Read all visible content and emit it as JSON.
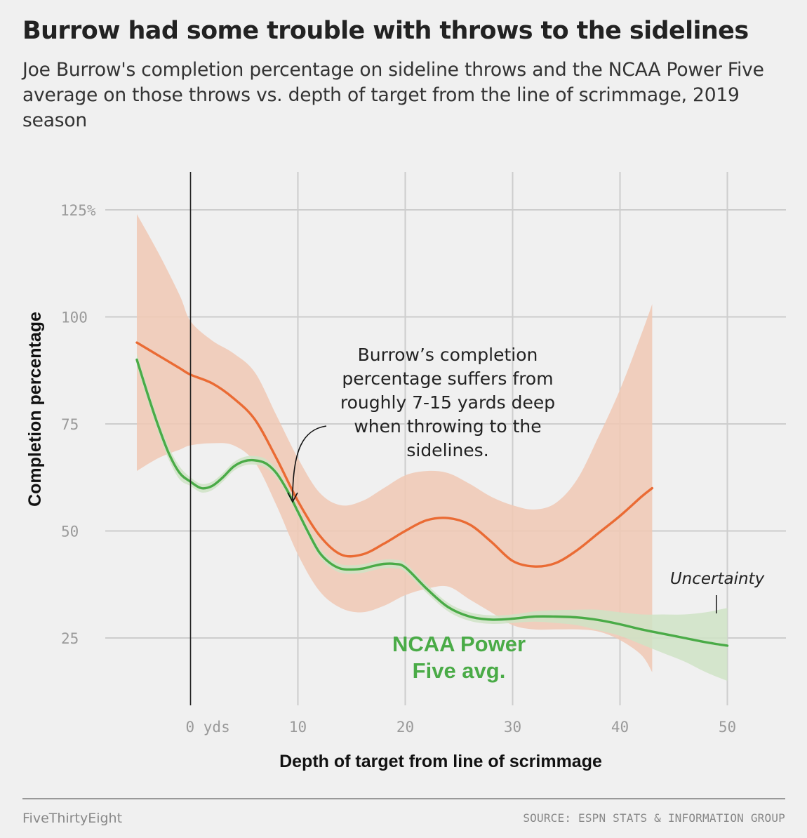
{
  "header": {
    "title": "Burrow had some trouble with throws to the sidelines",
    "subtitle": "Joe Burrow's completion percentage on sideline throws and the NCAA Power Five average on those throws vs. depth of target from the line of scrimmage, 2019 season"
  },
  "chart_data": {
    "type": "line",
    "xlabel": "Depth of target from line of scrimmage",
    "ylabel": "Completion percentage",
    "xlim": [
      -7,
      55
    ],
    "ylim": [
      10,
      130
    ],
    "x_ticks": [
      {
        "value": 0,
        "label": "0 yds"
      },
      {
        "value": 10,
        "label": "10"
      },
      {
        "value": 20,
        "label": "20"
      },
      {
        "value": 30,
        "label": "30"
      },
      {
        "value": 40,
        "label": "40"
      },
      {
        "value": 50,
        "label": "50"
      }
    ],
    "y_ticks": [
      {
        "value": 25,
        "label": "25"
      },
      {
        "value": 50,
        "label": "50"
      },
      {
        "value": 75,
        "label": "75"
      },
      {
        "value": 100,
        "label": "100"
      },
      {
        "value": 125,
        "label": "125%"
      }
    ],
    "grid": true,
    "zero_line_x": 0,
    "series": [
      {
        "key": "burrow",
        "color": "#ea6b34",
        "band_color": "#f0c8b4",
        "x": [
          -5,
          -3,
          -1,
          0,
          2,
          4,
          6,
          8,
          10,
          12,
          14,
          16,
          18,
          20,
          22,
          24,
          26,
          28,
          30,
          32,
          34,
          36,
          38,
          40,
          42,
          43
        ],
        "y": [
          94,
          91,
          88,
          86.5,
          84.5,
          81,
          76,
          67,
          57,
          49,
          44.5,
          44.5,
          47,
          50,
          52.5,
          53,
          51.5,
          47.5,
          43,
          41.7,
          42.5,
          45.5,
          49.5,
          53.5,
          58,
          60
        ],
        "lower": [
          64,
          67,
          69,
          70,
          70.5,
          70,
          66,
          56,
          44.5,
          36,
          32,
          31,
          32.5,
          35,
          36.5,
          37,
          34,
          31,
          28,
          27,
          27,
          27,
          26.5,
          24.5,
          21,
          17
        ],
        "upper": [
          124,
          115,
          105,
          99,
          94.5,
          91.5,
          87,
          77,
          67,
          59,
          56,
          57,
          60,
          63,
          64,
          63.5,
          61,
          58,
          56,
          55,
          56.5,
          62,
          72,
          83,
          96,
          103
        ]
      },
      {
        "key": "power_five",
        "color": "#4aab47",
        "band_color": "#cfe3c6",
        "x": [
          -5,
          -4,
          -3,
          -2,
          -1,
          0,
          1,
          2,
          3,
          4,
          5,
          6,
          7,
          8,
          9,
          10,
          11,
          12,
          13,
          14,
          15,
          16,
          17,
          18,
          19,
          20,
          22,
          24,
          26,
          28,
          30,
          32,
          34,
          36,
          38,
          40,
          42,
          44,
          46,
          48,
          50
        ],
        "y": [
          90,
          82,
          74.5,
          68,
          63.5,
          61.5,
          60,
          60.5,
          62.5,
          65,
          66.3,
          66.5,
          65.8,
          63.5,
          59.5,
          54.5,
          49.5,
          45,
          42.5,
          41.2,
          41,
          41.2,
          41.8,
          42.3,
          42.3,
          41.5,
          36.5,
          32.2,
          30,
          29.3,
          29.5,
          30,
          30,
          29.8,
          29.2,
          28.2,
          27,
          26,
          25,
          24,
          23.2
        ],
        "lower": [
          88.5,
          80.5,
          73,
          66.5,
          62,
          60.5,
          59,
          59.5,
          61.5,
          64,
          65.3,
          65.5,
          64.8,
          62.5,
          58.5,
          53.5,
          48.5,
          44,
          41.5,
          40.2,
          40,
          40.2,
          40.8,
          41.3,
          41.3,
          40.5,
          35.5,
          31.2,
          29,
          28.3,
          28.5,
          28.8,
          28.5,
          28,
          26.8,
          25.5,
          23.5,
          21.5,
          19.5,
          17,
          15
        ],
        "upper": [
          91.5,
          83.5,
          76,
          69.5,
          65,
          62.5,
          61,
          61.5,
          63.5,
          66,
          67.3,
          67.5,
          66.8,
          64.5,
          60.5,
          55.5,
          50.5,
          46,
          43.5,
          42.2,
          42,
          42.2,
          42.8,
          43.3,
          43.3,
          42.5,
          37.5,
          33.2,
          31,
          30.3,
          30.5,
          31.2,
          31.5,
          31.6,
          31.6,
          31,
          30.5,
          30.5,
          30.5,
          31,
          32
        ]
      }
    ],
    "annotations": {
      "burrow_note": "Burrow’s completion percentage suffers from roughly 7-15 yards deep when throwing to the sidelines.",
      "series_label": "NCAA Power Five avg.",
      "uncertainty": "Uncertainty"
    }
  },
  "footer": {
    "brand": "FiveThirtyEight",
    "source": "SOURCE: ESPN STATS & INFORMATION GROUP"
  }
}
